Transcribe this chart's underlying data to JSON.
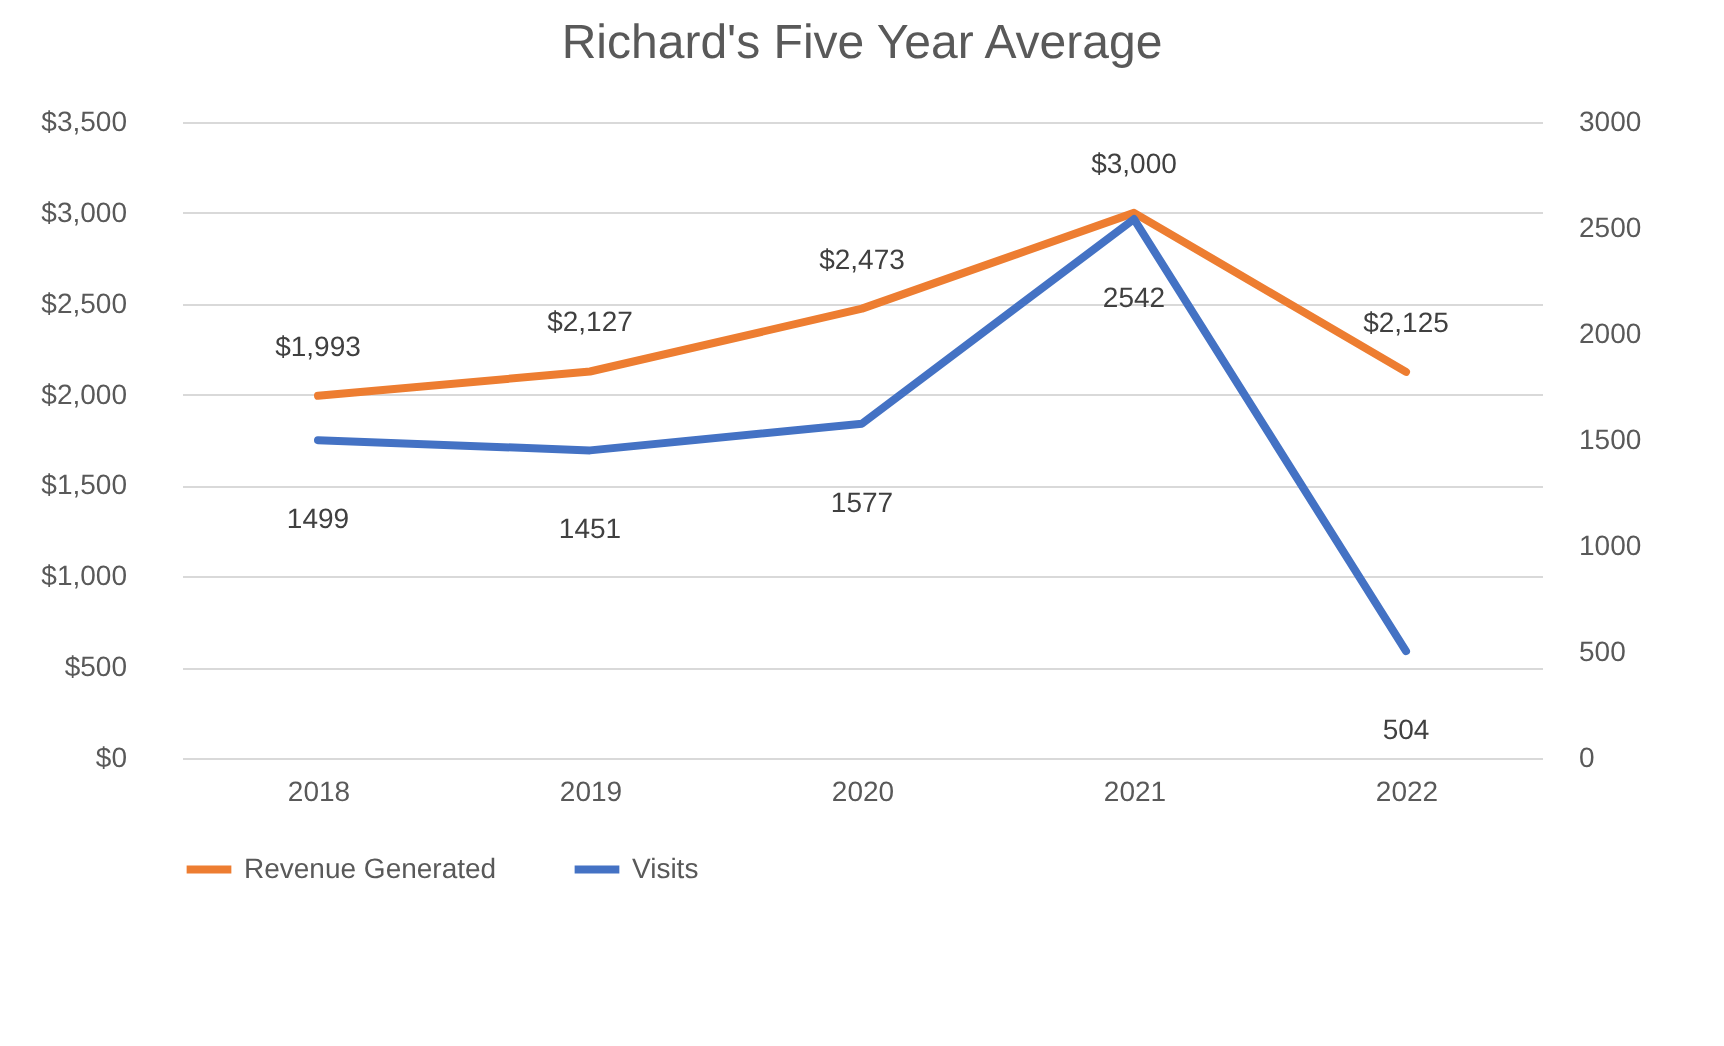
{
  "chart_data": {
    "type": "line",
    "title": "Richard's Five Year Average",
    "categories": [
      "2018",
      "2019",
      "2020",
      "2021",
      "2022"
    ],
    "series": [
      {
        "name": "Revenue Generated",
        "color": "#ed7d31",
        "values": [
          1993,
          2127,
          2473,
          3000,
          2125
        ],
        "value_labels": [
          "$1,993",
          "$2,127",
          "$2,473",
          "$3,000",
          "$2,125"
        ]
      },
      {
        "name": "Visits",
        "color": "#4472c4",
        "axis": "y2",
        "values": [
          1499,
          1451,
          1577,
          2542,
          504
        ],
        "value_labels": [
          "1499",
          "1451",
          "1577",
          "2542",
          "504"
        ]
      }
    ],
    "ylim": [
      0,
      3500
    ],
    "yticks": [
      {
        "value": 0,
        "label": "$0"
      },
      {
        "value": 500,
        "label": "$500"
      },
      {
        "value": 1000,
        "label": "$1,000"
      },
      {
        "value": 1500,
        "label": "$1,500"
      },
      {
        "value": 2000,
        "label": "$2,000"
      },
      {
        "value": 2500,
        "label": "$2,500"
      },
      {
        "value": 3000,
        "label": "$3,000"
      },
      {
        "value": 3500,
        "label": "$3,500"
      }
    ],
    "y2lim": [
      0,
      3000
    ],
    "y2ticks": [
      0,
      500,
      1000,
      1500,
      2000,
      2500,
      3000
    ],
    "grid": "y",
    "legend": "bottom",
    "marker": "none",
    "line_style": "solid"
  }
}
